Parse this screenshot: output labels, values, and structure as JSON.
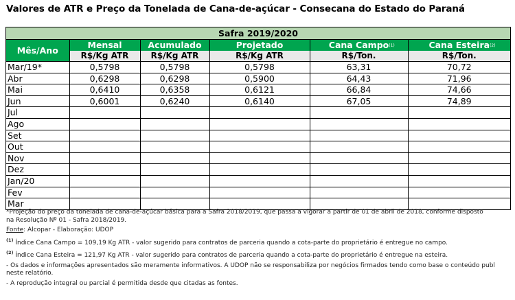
{
  "title": "Valores de ATR e Preço da Tonelada de Cana-de-açúcar - Consecana do Estado do Paraná",
  "safra": "Safra 2019/2020",
  "header": {
    "mes": "Mês/Ano",
    "cols": [
      {
        "label": "Mensal",
        "unit": "R$/Kg  ATR",
        "note": ""
      },
      {
        "label": "Acumulado",
        "unit": "R$/Kg  ATR",
        "note": ""
      },
      {
        "label": "Projetado",
        "unit": "R$/Kg  ATR",
        "note": ""
      },
      {
        "label": "Cana Campo",
        "unit": "R$/Ton.",
        "note": "(1)"
      },
      {
        "label": "Cana Esteira",
        "unit": "R$/Ton.",
        "note": "(2)"
      }
    ]
  },
  "rows": [
    {
      "mes": "Mar/19*",
      "v": [
        "0,5798",
        "0,5798",
        "0,5798",
        "63,31",
        "70,72"
      ]
    },
    {
      "mes": "Abr",
      "v": [
        "0,6298",
        "0,6298",
        "0,5900",
        "64,43",
        "71,96"
      ]
    },
    {
      "mes": "Mai",
      "v": [
        "0,6410",
        "0,6358",
        "0,6121",
        "66,84",
        "74,66"
      ]
    },
    {
      "mes": "Jun",
      "v": [
        "0,6001",
        "0,6240",
        "0,6140",
        "67,05",
        "74,89"
      ]
    },
    {
      "mes": "Jul",
      "v": [
        "",
        "",
        "",
        "",
        ""
      ]
    },
    {
      "mes": "Ago",
      "v": [
        "",
        "",
        "",
        "",
        ""
      ]
    },
    {
      "mes": "Set",
      "v": [
        "",
        "",
        "",
        "",
        ""
      ]
    },
    {
      "mes": "Out",
      "v": [
        "",
        "",
        "",
        "",
        ""
      ]
    },
    {
      "mes": "Nov",
      "v": [
        "",
        "",
        "",
        "",
        ""
      ]
    },
    {
      "mes": "Dez",
      "v": [
        "",
        "",
        "",
        "",
        ""
      ]
    },
    {
      "mes": "Jan/20",
      "v": [
        "",
        "",
        "",
        "",
        ""
      ]
    },
    {
      "mes": "Fev",
      "v": [
        "",
        "",
        "",
        "",
        ""
      ]
    },
    {
      "mes": "Mar",
      "v": [
        "",
        "",
        "",
        "",
        ""
      ]
    }
  ],
  "footer": {
    "note_projecao_1": "*Projeção do preço da tonelada de cana-de-açúcar básica para a Safra 2018/2019, que passa a vigorar a partir de 01 de abril de 2018, conforme disposto",
    "note_projecao_2": "na Resolução Nº 01 - Safra 2018/2019.",
    "fonte_label": "Fonte",
    "fonte_text": ": Alcopar - Elaboração: UDOP",
    "n1_mark": "(1)",
    "n1_text": " Índice Cana Campo = 109,19 Kg ATR - valor sugerido para contratos de parceria quando a cota-parte do proprietário é entregue no campo.",
    "n2_mark": "(2)",
    "n2_text": " Índice Cana Esteira = 121,97  Kg ATR - valor sugerido para contratos de parceria quando a cota-parte do proprietário é entregue na esteira.",
    "disclaimer_1": "- Os dados e informações apresentados são meramente informativos. A UDOP não se responsabiliza por negócios firmados tendo como base o conteúdo publ",
    "disclaimer_2": "  neste relatório.",
    "reproducao": "- A reprodução integral ou parcial é permitida desde que citadas as fontes."
  },
  "colors": {
    "header_green": "#00a54f",
    "safra_green": "#b7d7b2",
    "unit_gray": "#e9e9e9"
  }
}
